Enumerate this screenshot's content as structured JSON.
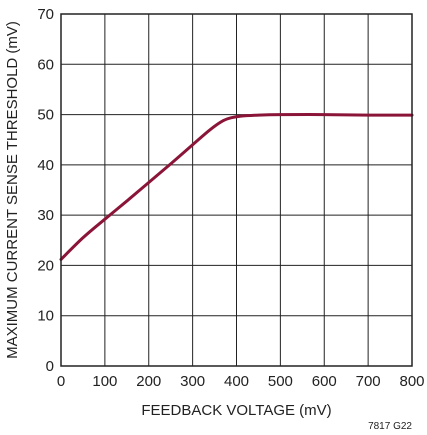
{
  "chart_data": {
    "type": "line",
    "title": "",
    "xlabel": "FEEDBACK VOLTAGE (mV)",
    "ylabel": "MAXIMUM CURRENT SENSE THRESHOLD (mV)",
    "xlim": [
      0,
      800
    ],
    "ylim": [
      0,
      70
    ],
    "xticks": [
      0,
      100,
      200,
      300,
      400,
      500,
      600,
      700,
      800
    ],
    "yticks": [
      0,
      10,
      20,
      30,
      40,
      50,
      60,
      70
    ],
    "grid": true,
    "series": [
      {
        "color": "#8b1538",
        "x": [
          0,
          50,
          100,
          150,
          200,
          250,
          300,
          340,
          370,
          390,
          410,
          450,
          500,
          600,
          700,
          800
        ],
        "y": [
          21.2,
          25.5,
          29.2,
          32.8,
          36.5,
          40.2,
          44.0,
          47.0,
          48.8,
          49.4,
          49.7,
          49.9,
          50.0,
          50.0,
          49.9,
          49.9
        ]
      }
    ]
  },
  "figure_id": "7817 G22"
}
